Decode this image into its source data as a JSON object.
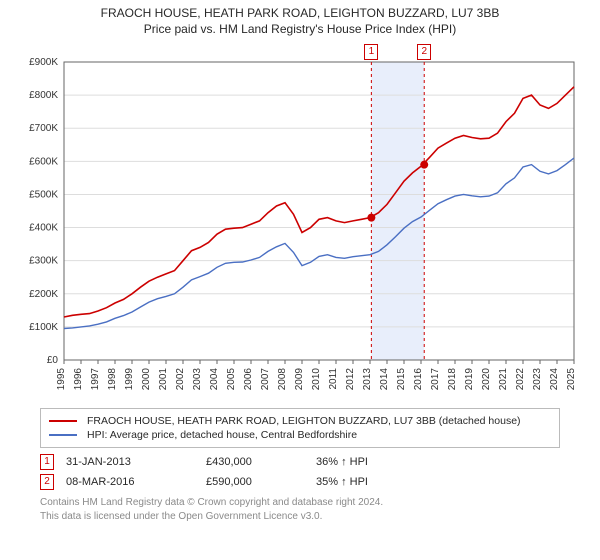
{
  "titles": {
    "line1": "FRAOCH HOUSE, HEATH PARK ROAD, LEIGHTON BUZZARD, LU7 3BB",
    "line2": "Price paid vs. HM Land Registry's House Price Index (HPI)"
  },
  "chart": {
    "type": "line",
    "background_color": "#ffffff",
    "grid_color": "#dddddd",
    "axis_color": "#666666",
    "tick_font_size": 10,
    "x": {
      "min": 1995,
      "max": 2025,
      "ticks": [
        1995,
        1996,
        1997,
        1998,
        1999,
        2000,
        2001,
        2002,
        2003,
        2004,
        2005,
        2006,
        2007,
        2008,
        2009,
        2010,
        2011,
        2012,
        2013,
        2014,
        2015,
        2016,
        2017,
        2018,
        2019,
        2020,
        2021,
        2022,
        2023,
        2024,
        2025
      ]
    },
    "y": {
      "min": 0,
      "max": 900000,
      "ticks": [
        0,
        100000,
        200000,
        300000,
        400000,
        500000,
        600000,
        700000,
        800000,
        900000
      ],
      "labels": [
        "£0",
        "£100K",
        "£200K",
        "£300K",
        "£400K",
        "£500K",
        "£600K",
        "£700K",
        "£800K",
        "£900K"
      ]
    },
    "shade": {
      "from": 2013.08,
      "to": 2016.19,
      "color": "#e8eefb"
    },
    "markers": {
      "dash_color": "#cc0000",
      "events": [
        {
          "n": "1",
          "year": 2013.08,
          "value": 430000
        },
        {
          "n": "2",
          "year": 2016.19,
          "value": 590000
        }
      ]
    },
    "series": [
      {
        "id": "subject",
        "color": "#cc0000",
        "width": 1.6,
        "label": "FRAOCH HOUSE, HEATH PARK ROAD, LEIGHTON BUZZARD, LU7 3BB (detached house)",
        "points": [
          [
            1995,
            130000
          ],
          [
            1995.5,
            135000
          ],
          [
            1996,
            138000
          ],
          [
            1996.5,
            140000
          ],
          [
            1997,
            148000
          ],
          [
            1997.5,
            158000
          ],
          [
            1998,
            172000
          ],
          [
            1998.5,
            183000
          ],
          [
            1999,
            200000
          ],
          [
            1999.5,
            220000
          ],
          [
            2000,
            238000
          ],
          [
            2000.5,
            250000
          ],
          [
            2001,
            260000
          ],
          [
            2001.5,
            270000
          ],
          [
            2002,
            300000
          ],
          [
            2002.5,
            330000
          ],
          [
            2003,
            340000
          ],
          [
            2003.5,
            355000
          ],
          [
            2004,
            380000
          ],
          [
            2004.5,
            395000
          ],
          [
            2005,
            398000
          ],
          [
            2005.5,
            400000
          ],
          [
            2006,
            410000
          ],
          [
            2006.5,
            420000
          ],
          [
            2007,
            445000
          ],
          [
            2007.5,
            465000
          ],
          [
            2008,
            475000
          ],
          [
            2008.5,
            440000
          ],
          [
            2009,
            385000
          ],
          [
            2009.5,
            400000
          ],
          [
            2010,
            425000
          ],
          [
            2010.5,
            430000
          ],
          [
            2011,
            420000
          ],
          [
            2011.5,
            415000
          ],
          [
            2012,
            420000
          ],
          [
            2012.5,
            425000
          ],
          [
            2013,
            430000
          ],
          [
            2013.5,
            445000
          ],
          [
            2014,
            470000
          ],
          [
            2014.5,
            505000
          ],
          [
            2015,
            540000
          ],
          [
            2015.5,
            565000
          ],
          [
            2016,
            585000
          ],
          [
            2016.5,
            612000
          ],
          [
            2017,
            640000
          ],
          [
            2017.5,
            655000
          ],
          [
            2018,
            670000
          ],
          [
            2018.5,
            678000
          ],
          [
            2019,
            672000
          ],
          [
            2019.5,
            668000
          ],
          [
            2020,
            670000
          ],
          [
            2020.5,
            685000
          ],
          [
            2021,
            720000
          ],
          [
            2021.5,
            745000
          ],
          [
            2022,
            790000
          ],
          [
            2022.5,
            800000
          ],
          [
            2023,
            770000
          ],
          [
            2023.5,
            760000
          ],
          [
            2024,
            775000
          ],
          [
            2024.5,
            800000
          ],
          [
            2025,
            825000
          ]
        ]
      },
      {
        "id": "hpi",
        "color": "#4a6fc3",
        "width": 1.4,
        "label": "HPI: Average price, detached house, Central Bedfordshire",
        "points": [
          [
            1995,
            95000
          ],
          [
            1995.5,
            97000
          ],
          [
            1996,
            100000
          ],
          [
            1996.5,
            103000
          ],
          [
            1997,
            108000
          ],
          [
            1997.5,
            115000
          ],
          [
            1998,
            126000
          ],
          [
            1998.5,
            134000
          ],
          [
            1999,
            145000
          ],
          [
            1999.5,
            160000
          ],
          [
            2000,
            175000
          ],
          [
            2000.5,
            185000
          ],
          [
            2001,
            192000
          ],
          [
            2001.5,
            200000
          ],
          [
            2002,
            220000
          ],
          [
            2002.5,
            242000
          ],
          [
            2003,
            252000
          ],
          [
            2003.5,
            262000
          ],
          [
            2004,
            280000
          ],
          [
            2004.5,
            292000
          ],
          [
            2005,
            295000
          ],
          [
            2005.5,
            296000
          ],
          [
            2006,
            302000
          ],
          [
            2006.5,
            310000
          ],
          [
            2007,
            328000
          ],
          [
            2007.5,
            342000
          ],
          [
            2008,
            352000
          ],
          [
            2008.5,
            325000
          ],
          [
            2009,
            285000
          ],
          [
            2009.5,
            295000
          ],
          [
            2010,
            313000
          ],
          [
            2010.5,
            318000
          ],
          [
            2011,
            310000
          ],
          [
            2011.5,
            307000
          ],
          [
            2012,
            312000
          ],
          [
            2012.5,
            315000
          ],
          [
            2013,
            318000
          ],
          [
            2013.5,
            328000
          ],
          [
            2014,
            348000
          ],
          [
            2014.5,
            372000
          ],
          [
            2015,
            398000
          ],
          [
            2015.5,
            418000
          ],
          [
            2016,
            432000
          ],
          [
            2016.5,
            452000
          ],
          [
            2017,
            472000
          ],
          [
            2017.5,
            484000
          ],
          [
            2018,
            495000
          ],
          [
            2018.5,
            500000
          ],
          [
            2019,
            496000
          ],
          [
            2019.5,
            493000
          ],
          [
            2020,
            495000
          ],
          [
            2020.5,
            505000
          ],
          [
            2021,
            532000
          ],
          [
            2021.5,
            550000
          ],
          [
            2022,
            583000
          ],
          [
            2022.5,
            590000
          ],
          [
            2023,
            570000
          ],
          [
            2023.5,
            562000
          ],
          [
            2024,
            572000
          ],
          [
            2024.5,
            590000
          ],
          [
            2025,
            610000
          ]
        ]
      }
    ]
  },
  "legend": {
    "rows": [
      {
        "color": "#cc0000",
        "label_ref": "subject"
      },
      {
        "color": "#4a6fc3",
        "label_ref": "hpi"
      }
    ]
  },
  "sales": [
    {
      "n": "1",
      "date": "31-JAN-2013",
      "price": "£430,000",
      "diff": "36% ↑ HPI"
    },
    {
      "n": "2",
      "date": "08-MAR-2016",
      "price": "£590,000",
      "diff": "35% ↑ HPI"
    }
  ],
  "footer": {
    "l1": "Contains HM Land Registry data © Crown copyright and database right 2024.",
    "l2": "This data is licensed under the Open Government Licence v3.0."
  }
}
